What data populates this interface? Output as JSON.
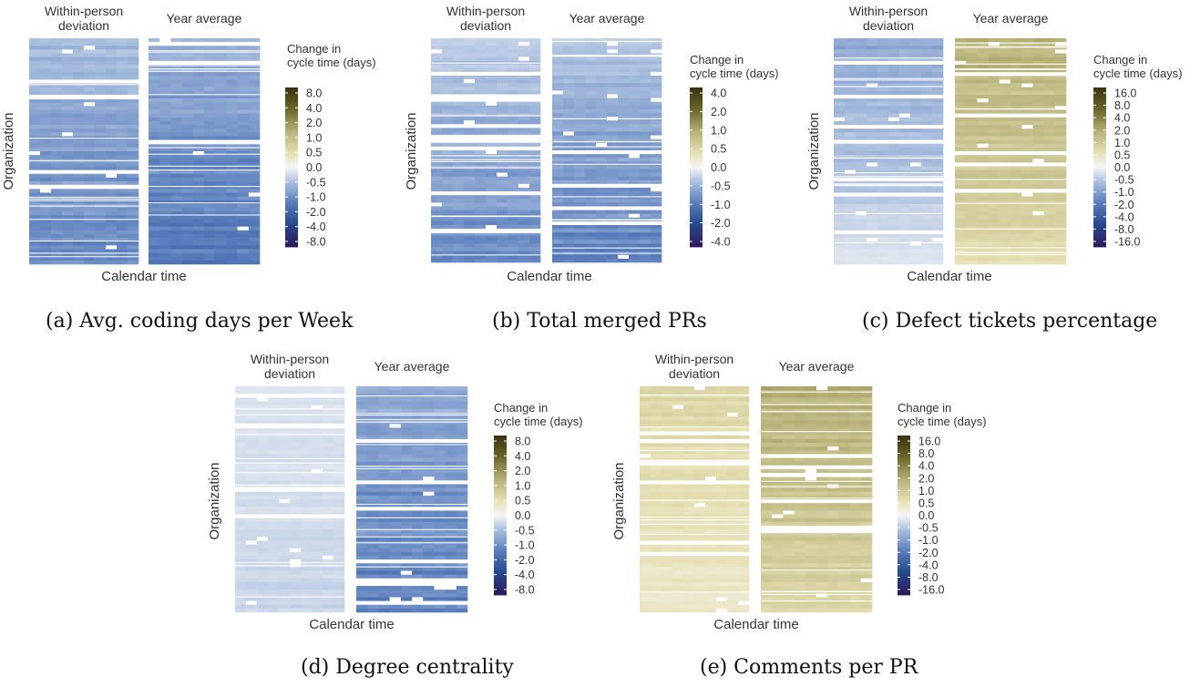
{
  "common": {
    "facet_left": [
      "Within-person",
      "deviation"
    ],
    "facet_right": "Year average",
    "xlabel": "Calendar time",
    "ylabel": "Organization",
    "legend_title": [
      "Change in",
      "cycle time (days)"
    ]
  },
  "colors": {
    "negative_extreme": "#2b1b5e",
    "negative_dark": "#27498e",
    "negative_mid": "#5b7fbd",
    "negative_light": "#aec2e0",
    "neutral": "#f6f6f6",
    "positive_light": "#e6e0b4",
    "positive_mid": "#b8b27a",
    "positive_dark": "#6e6a2c",
    "positive_extreme": "#3b3410"
  },
  "chart_data": [
    {
      "id": "a",
      "type": "heatmap",
      "caption": "(a) Avg. coding days per Week",
      "xlabel": "Calendar time",
      "ylabel": "Organization",
      "facets": [
        "Within-person deviation",
        "Year average"
      ],
      "legend_ticks": [
        "8.0",
        "4.0",
        "2.0",
        "1.0",
        "0.5",
        "0.0",
        "-0.5",
        "-1.0",
        "-2.0",
        "-4.0",
        "-8.0"
      ],
      "colorbar_max": 12,
      "facet_intensity": [
        {
          "start": -0.45,
          "end": -1.4
        },
        {
          "start": -0.55,
          "end": -1.9
        }
      ]
    },
    {
      "id": "b",
      "type": "heatmap",
      "caption": "(b) Total merged PRs",
      "xlabel": "Calendar time",
      "ylabel": "Organization",
      "facets": [
        "Within-person deviation",
        "Year average"
      ],
      "legend_ticks": [
        "4.0",
        "2.0",
        "1.0",
        "0.5",
        "0.0",
        "-0.5",
        "-1.0",
        "-2.0",
        "-4.0"
      ],
      "colorbar_max": 6,
      "facet_intensity": [
        {
          "start": -0.22,
          "end": -0.85
        },
        {
          "start": -0.25,
          "end": -1.0
        }
      ]
    },
    {
      "id": "c",
      "type": "heatmap",
      "caption": "(c) Defect tickets percentage",
      "xlabel": "Calendar time",
      "ylabel": "Organization",
      "facets": [
        "Within-person deviation",
        "Year average"
      ],
      "legend_ticks": [
        "16.0",
        "8.0",
        "4.0",
        "2.0",
        "1.0",
        "0.5",
        "0.0",
        "-0.5",
        "-1.0",
        "-2.0",
        "-4.0",
        "-8.0",
        "-16.0"
      ],
      "colorbar_max": 24,
      "facet_intensity": [
        {
          "start": -1.0,
          "end": -0.15
        },
        {
          "start": 2.2,
          "end": 0.55
        }
      ]
    },
    {
      "id": "d",
      "type": "heatmap",
      "caption": "(d) Degree centrality",
      "xlabel": "Calendar time",
      "ylabel": "Organization",
      "facets": [
        "Within-person deviation",
        "Year average"
      ],
      "legend_ticks": [
        "8.0",
        "4.0",
        "2.0",
        "1.0",
        "0.5",
        "0.0",
        "-0.5",
        "-1.0",
        "-2.0",
        "-4.0",
        "-8.0"
      ],
      "colorbar_max": 12,
      "facet_intensity": [
        {
          "start": -0.12,
          "end": -0.22
        },
        {
          "start": -0.7,
          "end": -1.7
        }
      ]
    },
    {
      "id": "e",
      "type": "heatmap",
      "caption": "(e) Comments per PR",
      "xlabel": "Calendar time",
      "ylabel": "Organization",
      "facets": [
        "Within-person deviation",
        "Year average"
      ],
      "legend_ticks": [
        "16.0",
        "8.0",
        "4.0",
        "2.0",
        "1.0",
        "0.5",
        "0.0",
        "-0.5",
        "-1.0",
        "-2.0",
        "-4.0",
        "-8.0",
        "-16.0"
      ],
      "colorbar_max": 24,
      "facet_intensity": [
        {
          "start": 0.7,
          "end": 0.3
        },
        {
          "start": 2.4,
          "end": 0.7
        }
      ]
    }
  ]
}
